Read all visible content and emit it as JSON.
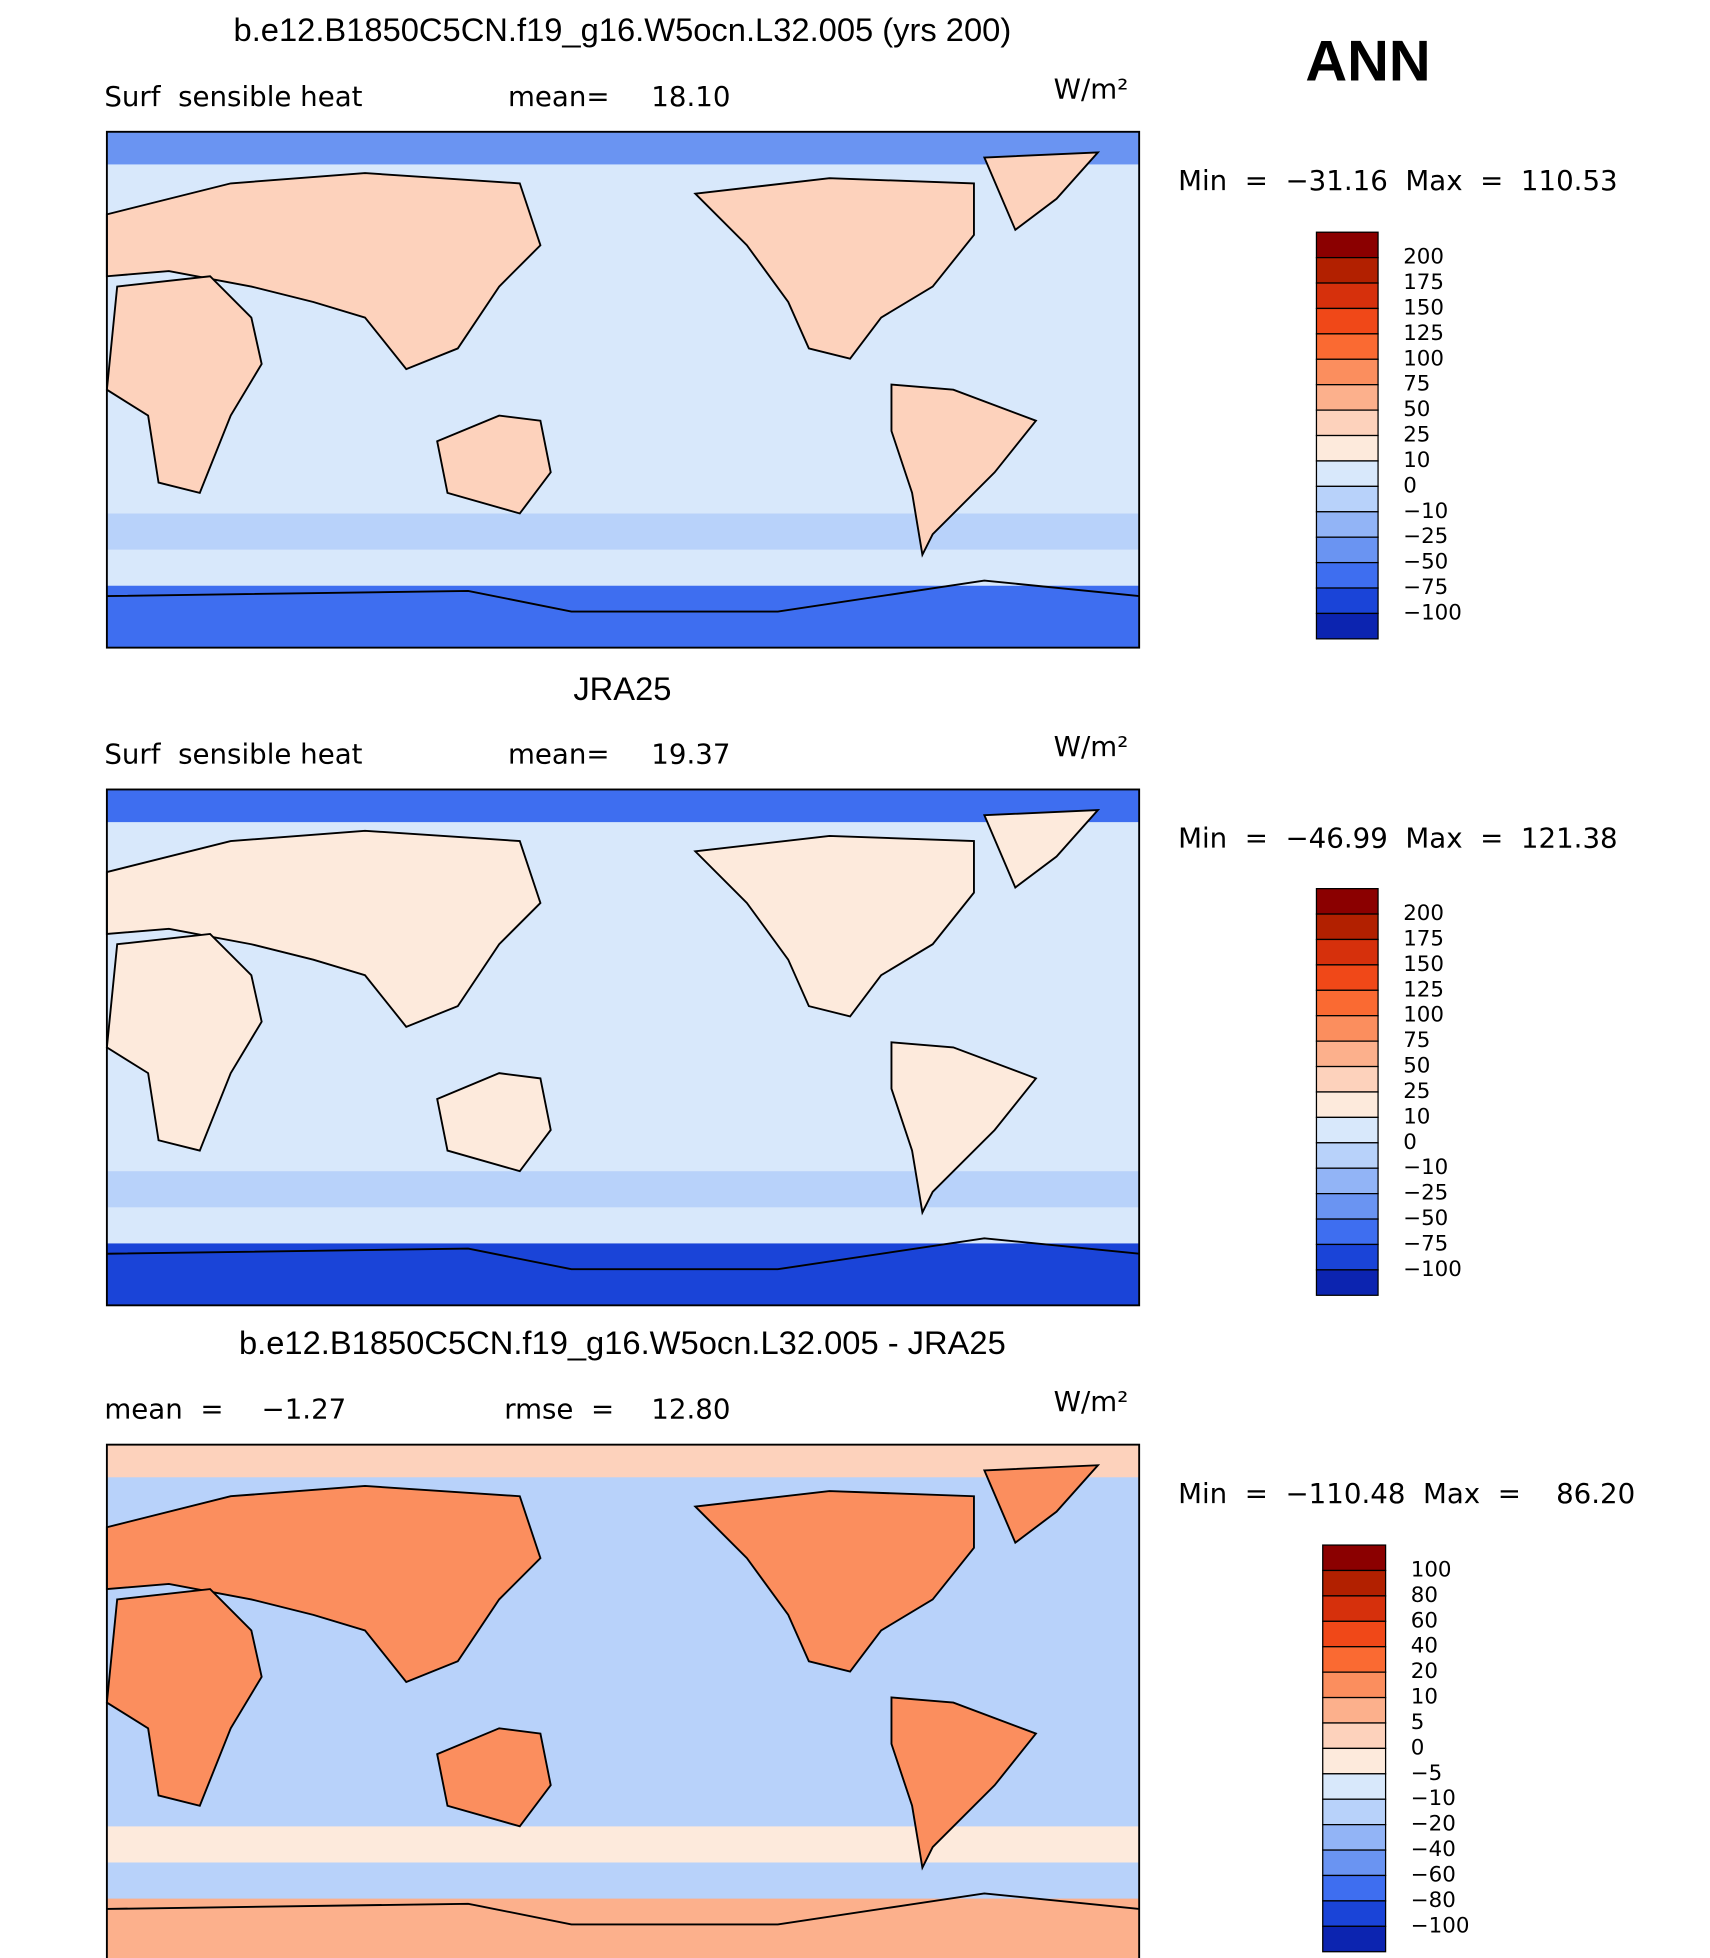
{
  "header": {
    "season": "ANN"
  },
  "panels": [
    {
      "title": "b.e12.B1850C5CN.f19_g16.W5ocn.L32.005 (yrs 200)",
      "left_label": "Surf  sensible heat",
      "stat_label": "mean=",
      "stat_value": "18.10",
      "units": "W/m²",
      "minmax": "Min  =  −31.16  Max  =  110.53",
      "colorbar": {
        "labels": [
          "200",
          "175",
          "150",
          "125",
          "100",
          "75",
          "50",
          "25",
          "10",
          "0",
          "−10",
          "−25",
          "−50",
          "−75",
          "−100"
        ],
        "colors": [
          "#8b0000",
          "#b22000",
          "#d6300c",
          "#f04818",
          "#fa6a32",
          "#fb8e5e",
          "#fcb08c",
          "#fdd2bc",
          "#fdeadc",
          "#d8e8fb",
          "#b8d2fa",
          "#92b4f6",
          "#6a94f2",
          "#3e6ef0",
          "#1a44d8",
          "#0c24b0"
        ]
      }
    },
    {
      "title": "JRA25",
      "left_label": "Surf  sensible heat",
      "stat_label": "mean=",
      "stat_value": "19.37",
      "units": "W/m²",
      "minmax": "Min  =  −46.99  Max  =  121.38",
      "colorbar": {
        "labels": [
          "200",
          "175",
          "150",
          "125",
          "100",
          "75",
          "50",
          "25",
          "10",
          "0",
          "−10",
          "−25",
          "−50",
          "−75",
          "−100"
        ],
        "colors": [
          "#8b0000",
          "#b22000",
          "#d6300c",
          "#f04818",
          "#fa6a32",
          "#fb8e5e",
          "#fcb08c",
          "#fdd2bc",
          "#fdeadc",
          "#d8e8fb",
          "#b8d2fa",
          "#92b4f6",
          "#6a94f2",
          "#3e6ef0",
          "#1a44d8",
          "#0c24b0"
        ]
      }
    },
    {
      "title": "b.e12.B1850C5CN.f19_g16.W5ocn.L32.005 - JRA25",
      "left_label": "mean  =",
      "left_value": "−1.27",
      "stat_label": "rmse  =",
      "stat_value": "12.80",
      "units": "W/m²",
      "minmax": "Min  =  −110.48  Max  =    86.20",
      "colorbar": {
        "labels": [
          "100",
          "80",
          "60",
          "40",
          "20",
          "10",
          "5",
          "0",
          "−5",
          "−10",
          "−20",
          "−40",
          "−60",
          "−80",
          "−100"
        ],
        "colors": [
          "#8b0000",
          "#b22000",
          "#d6300c",
          "#f04818",
          "#fa6a32",
          "#fb8e5e",
          "#fcb08c",
          "#fdd2bc",
          "#fdeadc",
          "#d8e8fb",
          "#b8d2fa",
          "#92b4f6",
          "#6a94f2",
          "#3e6ef0",
          "#1a44d8",
          "#0c24b0"
        ]
      }
    }
  ]
}
